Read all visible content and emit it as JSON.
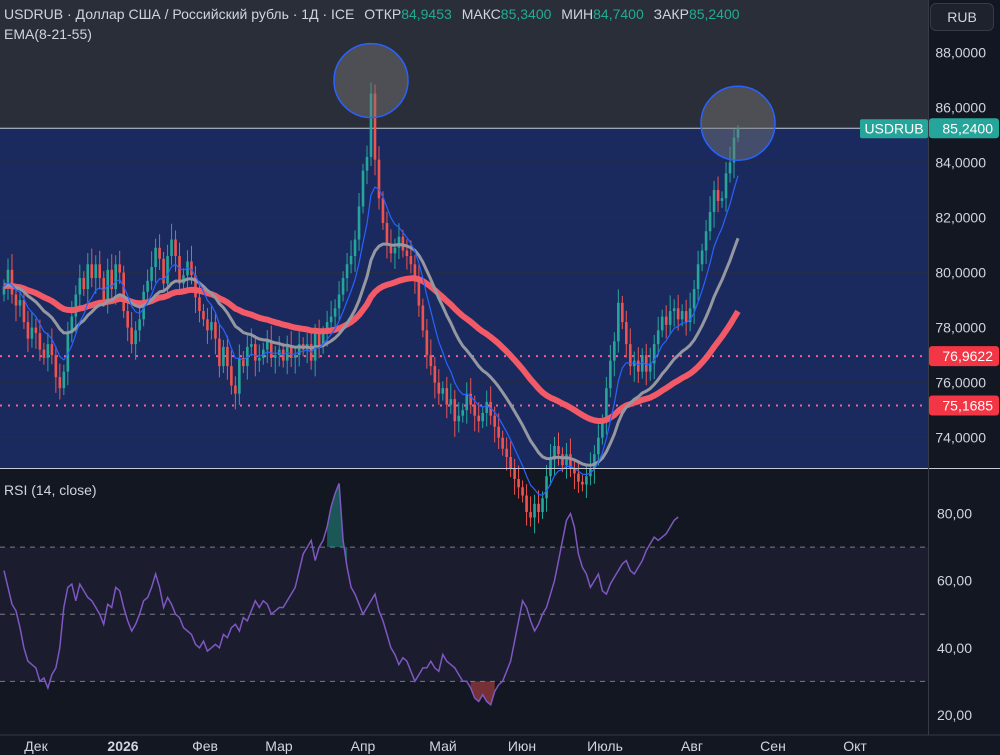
{
  "header": {
    "symbol_line": "USDRUB · Доллар США / Российский рубль · 1Д · ICE",
    "open_label": "ОТКР",
    "open_value": "84,9453",
    "high_label": "МАКС",
    "high_value": "85,3400",
    "low_label": "МИН",
    "low_value": "84,7400",
    "close_label": "ЗАКР",
    "close_value": "85,2400",
    "ema_label": "EMA(8-21-55)",
    "currency_button": "RUB",
    "rsi_label": "RSI (14, close)"
  },
  "colors": {
    "background": "#131722",
    "zone_fill": "#1b2a5e",
    "up_candle": "#26a69a",
    "down_candle": "#ef5350",
    "ema8": "#2962ff",
    "ema21": "#9598a1",
    "ema55": "#f25a68",
    "rsi_line": "#7e57c2",
    "level_line": "#f06292",
    "price_badge": "#26a69a",
    "level_badge": "#f23645",
    "circle_stroke": "#2962ff"
  },
  "chart_data": [
    {
      "type": "candlestick",
      "symbol": "USDRUB",
      "y_axis_ticks": [
        "88,0000",
        "86,0000",
        "84,0000",
        "82,0000",
        "80,0000",
        "78,0000",
        "76,0000",
        "74,0000"
      ],
      "y_tick_values": [
        88,
        86,
        84,
        82,
        80,
        78,
        76,
        74
      ],
      "ylim": [
        72.9,
        89.9
      ],
      "x_axis_ticks": [
        "Дек",
        "2026",
        "Фев",
        "Мар",
        "Апр",
        "Май",
        "Июн",
        "Июль",
        "Авг",
        "Сен",
        "Окт"
      ],
      "x_tick_bold": [
        false,
        true,
        false,
        false,
        false,
        false,
        false,
        false,
        false,
        false,
        false
      ],
      "last_price": {
        "label": "USDRUB",
        "value": "85,2400",
        "num": 85.24
      },
      "levels": [
        {
          "value": "76,9622",
          "num": 76.9622
        },
        {
          "value": "75,1685",
          "num": 75.1685
        }
      ],
      "zone": {
        "top": 85.24,
        "bottom": 72.9
      },
      "circles_at_highs": [
        86.9,
        85.35
      ],
      "ema_lines": [
        "EMA 8",
        "EMA 21",
        "EMA 55"
      ],
      "series": {
        "close": [
          79.5,
          80.1,
          79.2,
          78.8,
          79.0,
          78.2,
          77.6,
          78.0,
          77.8,
          77.2,
          76.9,
          77.4,
          77.0,
          76.2,
          75.8,
          76.4,
          77.8,
          78.4,
          79.2,
          79.8,
          79.4,
          80.3,
          79.8,
          80.3,
          79.8,
          79.0,
          80.1,
          79.4,
          80.3,
          80.0,
          78.6,
          78.0,
          77.4,
          77.9,
          78.3,
          79.3,
          79.7,
          80.2,
          80.9,
          80.5,
          79.6,
          80.6,
          81.2,
          80.6,
          79.6,
          79.9,
          80.4,
          79.9,
          79.1,
          78.6,
          78.3,
          77.9,
          78.2,
          77.6,
          76.6,
          77.3,
          76.6,
          75.9,
          75.6,
          76.9,
          76.6,
          77.3,
          77.4,
          76.8,
          76.9,
          77.2,
          77.5,
          76.9,
          77.0,
          77.2,
          76.8,
          77.3,
          76.9,
          77.0,
          77.4,
          77.2,
          77.4,
          76.8,
          77.8,
          77.3,
          77.8,
          78.2,
          78.4,
          78.7,
          79.2,
          79.8,
          80.3,
          80.6,
          81.2,
          82.4,
          83.7,
          84.2,
          86.5,
          84.1,
          82.7,
          81.8,
          81.0,
          80.7,
          80.9,
          81.3,
          80.8,
          80.6,
          80.3,
          79.8,
          78.8,
          77.9,
          77.0,
          76.6,
          76.0,
          75.6,
          75.8,
          75.2,
          75.4,
          74.6,
          74.8,
          75.0,
          75.6,
          75.2,
          74.8,
          74.6,
          74.9,
          75.3,
          74.8,
          74.4,
          74.0,
          73.6,
          73.3,
          72.9,
          72.5,
          72.2,
          71.9,
          71.3,
          71.1,
          71.6,
          71.3,
          71.8,
          72.6,
          73.2,
          73.7,
          73.4,
          73.0,
          73.4,
          72.9,
          72.7,
          72.4,
          72.3,
          72.6,
          72.9,
          73.4,
          74.0,
          74.6,
          75.8,
          76.8,
          77.5,
          78.9,
          78.2,
          77.4,
          76.6,
          76.8,
          76.4,
          77.0,
          76.4,
          76.7,
          77.4,
          77.9,
          78.4,
          78.1,
          78.6,
          78.7,
          78.3,
          78.6,
          78.2,
          78.7,
          79.4,
          80.3,
          80.8,
          81.5,
          82.2,
          83.0,
          82.6,
          82.7,
          83.6,
          84.0,
          84.9,
          85.24
        ],
        "rsi": [
          63,
          58,
          53,
          51,
          46,
          40,
          36,
          35,
          34,
          30,
          31,
          28,
          32,
          34,
          40,
          52,
          58,
          59,
          54,
          59,
          57,
          55,
          54,
          52,
          50,
          47,
          53,
          52,
          58,
          57,
          52,
          48,
          45,
          47,
          50,
          54,
          55,
          58,
          62,
          58,
          52,
          55,
          53,
          50,
          49,
          46,
          45,
          44,
          41,
          40,
          42,
          39,
          40,
          41,
          40,
          44,
          43,
          46,
          47,
          45,
          49,
          48,
          51,
          54,
          52,
          54,
          53,
          50,
          51,
          52,
          52,
          54,
          56,
          58,
          63,
          68,
          70,
          72,
          66,
          70,
          72,
          76,
          82,
          86,
          89,
          72,
          64,
          58,
          56,
          53,
          50,
          52,
          54,
          56,
          51,
          48,
          44,
          40,
          38,
          35,
          37,
          36,
          33,
          30,
          32,
          34,
          34,
          36,
          34,
          33,
          38,
          36,
          35,
          34,
          32,
          30,
          30,
          28,
          25,
          24,
          26,
          24,
          23,
          27,
          29,
          30,
          33,
          36,
          42,
          48,
          54,
          52,
          48,
          45,
          47,
          50,
          52,
          56,
          60,
          66,
          72,
          78,
          80,
          76,
          68,
          64,
          62,
          58,
          60,
          62,
          57,
          56,
          59,
          61,
          63,
          65,
          66,
          63,
          62,
          64,
          66,
          69,
          71,
          73,
          72,
          73,
          74,
          76,
          78,
          79
        ]
      }
    },
    {
      "type": "line",
      "name": "RSI (14, close)",
      "y_axis_ticks": [
        "80,00",
        "60,00",
        "40,00",
        "20,00"
      ],
      "y_tick_values": [
        80,
        60,
        40,
        20
      ],
      "ylim": [
        14,
        93
      ],
      "bands": [
        70,
        50,
        30
      ]
    }
  ]
}
